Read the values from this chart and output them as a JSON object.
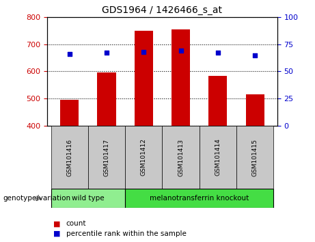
{
  "title": "GDS1964 / 1426466_s_at",
  "samples": [
    "GSM101416",
    "GSM101417",
    "GSM101412",
    "GSM101413",
    "GSM101414",
    "GSM101415"
  ],
  "counts": [
    496,
    596,
    748,
    754,
    584,
    516
  ],
  "percentile_ranks": [
    66,
    67,
    68,
    69,
    67,
    65
  ],
  "y_min": 400,
  "y_max": 800,
  "y_ticks": [
    400,
    500,
    600,
    700,
    800
  ],
  "right_y_ticks": [
    0,
    25,
    50,
    75,
    100
  ],
  "bar_color": "#cc0000",
  "dot_color": "#0000cc",
  "bar_bottom": 400,
  "groups": [
    {
      "label": "wild type",
      "indices": [
        0,
        1
      ],
      "color": "#90ee90"
    },
    {
      "label": "melanotransferrin knockout",
      "indices": [
        2,
        3,
        4,
        5
      ],
      "color": "#44dd44"
    }
  ],
  "group_label": "genotype/variation",
  "legend_count_label": "count",
  "legend_pct_label": "percentile rank within the sample",
  "sample_box_color": "#c8c8c8",
  "background_color": "#ffffff"
}
